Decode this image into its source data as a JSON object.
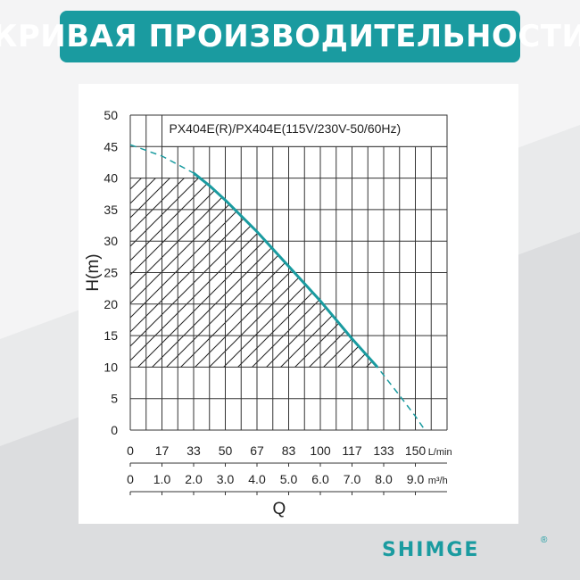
{
  "header": {
    "title": "КРИВАЯ ПРОИЗВОДИТЕЛЬНОСТИ"
  },
  "brand": {
    "name": "SHIMGE",
    "mark": "®"
  },
  "colors": {
    "accent": "#1a9ba0",
    "curve": "#1a9ba0",
    "grid": "#333333",
    "background": "#e9eaeb"
  },
  "chart_data": {
    "type": "line",
    "title": "PX404E(R)/PX404E(115V/230V-50/60Hz)",
    "ylabel": "H(m)",
    "xlabel": "Q",
    "ylim": [
      0,
      50
    ],
    "xlim": [
      0,
      10
    ],
    "y_ticks": [
      "0",
      "5",
      "10",
      "15",
      "20",
      "25",
      "30",
      "35",
      "40",
      "45",
      "50"
    ],
    "x_ticks_lmin": [
      "0",
      "17",
      "33",
      "50",
      "67",
      "83",
      "100",
      "117",
      "133",
      "150"
    ],
    "x_ticks_m3h": [
      "0",
      "1.0",
      "2.0",
      "3.0",
      "4.0",
      "5.0",
      "6.0",
      "7.0",
      "8.0",
      "9.0"
    ],
    "x_unit_lmin": "L/min",
    "x_unit_m3h": "m³/h",
    "grid": true,
    "recommended_range": {
      "x": [
        0,
        7.8
      ],
      "y": [
        10,
        40
      ]
    },
    "series": [
      {
        "x": [
          0,
          1.0,
          2.0,
          2.5,
          3.0,
          4.0,
          5.0,
          6.0,
          7.0,
          7.8,
          8.5,
          9.0,
          9.3
        ],
        "y": [
          45.3,
          43.5,
          40.8,
          38.8,
          36.5,
          31.5,
          26.0,
          20.5,
          14.5,
          10.0,
          5.5,
          2.2,
          0
        ]
      }
    ]
  }
}
